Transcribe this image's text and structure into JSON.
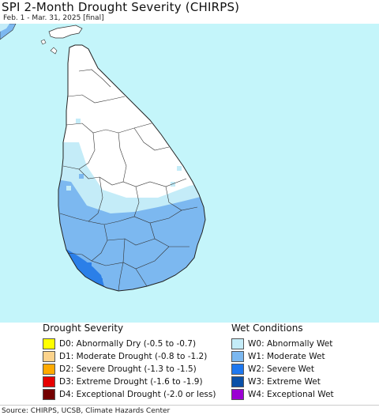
{
  "title": "SPI 2-Month Drought Severity (CHIRPS)",
  "subtitle": "Feb. 1 - Mar. 31, 2025 [final]",
  "colors": {
    "ocean": "#c4f5fa",
    "land": "#ffffff",
    "w0": "#c4ecf8",
    "w1": "#7cb8f0",
    "w2": "#2b7fe8"
  },
  "legend": {
    "drought_heading": "Drought Severity",
    "drought_items": [
      {
        "label": "D0: Abnormally Dry (-0.5 to -0.7)",
        "color": "#ffff00"
      },
      {
        "label": "D1: Moderate Drought (-0.8 to -1.2)",
        "color": "#fcd38c"
      },
      {
        "label": "D2: Severe Drought (-1.3 to -1.5)",
        "color": "#ffaa00"
      },
      {
        "label": "D3: Extreme Drought (-1.6 to -1.9)",
        "color": "#e60000"
      },
      {
        "label": "D4: Exceptional Drought (-2.0 or less)",
        "color": "#730000"
      }
    ],
    "wet_heading": "Wet Conditions",
    "wet_items": [
      {
        "label": "W0: Abnormally Wet",
        "color": "#c4ecf8"
      },
      {
        "label": "W1: Moderate Wet",
        "color": "#7cb8f0"
      },
      {
        "label": "W2: Severe Wet",
        "color": "#1e78f0"
      },
      {
        "label": "W3: Extreme Wet",
        "color": "#0a50a8"
      },
      {
        "label": "W4: Exceptional Wet",
        "color": "#9b00d3"
      }
    ]
  },
  "footer": "Source: CHIRPS, UCSB, Climate Hazards Center"
}
